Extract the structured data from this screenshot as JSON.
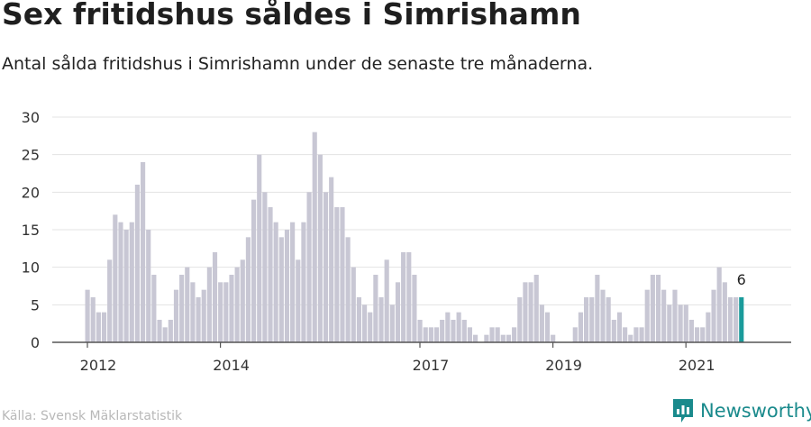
{
  "title": "Sex fritidshus såldes i Simrishamn",
  "subtitle": "Antal sålda fritidshus i Simrishamn under de senaste tre månaderna.",
  "source": "Källa: Svensk Mäklarstatistik",
  "brand": "Newsworthy",
  "colors": {
    "bar": "#c8c7d4",
    "highlight": "#1a9b9b",
    "grid": "#e3e3e3",
    "axis": "#555555",
    "brand": "#1a8a8c"
  },
  "icon": "newsworthy-logo-icon",
  "chart_data": {
    "type": "bar",
    "title": "Sex fritidshus såldes i Simrishamn",
    "xlabel": "",
    "ylabel": "",
    "ylim": [
      0,
      30
    ],
    "yticks": [
      0,
      5,
      10,
      15,
      20,
      25,
      30
    ],
    "grid": true,
    "x_start": "2012-01",
    "x_ticks": [
      {
        "label": "2012",
        "date": "2012-01"
      },
      {
        "label": "2014",
        "date": "2014-01"
      },
      {
        "label": "2017",
        "date": "2017-01"
      },
      {
        "label": "2019",
        "date": "2019-01"
      },
      {
        "label": "2021",
        "date": "2021-01"
      }
    ],
    "values": [
      7,
      6,
      4,
      4,
      11,
      17,
      16,
      15,
      16,
      21,
      24,
      15,
      9,
      3,
      2,
      3,
      7,
      9,
      10,
      8,
      6,
      7,
      10,
      12,
      8,
      8,
      9,
      10,
      11,
      14,
      19,
      25,
      20,
      18,
      16,
      14,
      15,
      16,
      11,
      16,
      20,
      28,
      25,
      20,
      22,
      18,
      18,
      14,
      10,
      6,
      5,
      4,
      9,
      6,
      11,
      5,
      8,
      12,
      12,
      9,
      3,
      2,
      2,
      2,
      3,
      4,
      3,
      4,
      3,
      2,
      1,
      0,
      1,
      2,
      2,
      1,
      1,
      2,
      6,
      8,
      8,
      9,
      5,
      4,
      1,
      0,
      0,
      0,
      2,
      4,
      6,
      6,
      9,
      7,
      6,
      3,
      4,
      2,
      1,
      2,
      2,
      7,
      9,
      9,
      7,
      5,
      7,
      5,
      5,
      3,
      2,
      2,
      4,
      7,
      10,
      8,
      6,
      6,
      6
    ],
    "highlight_last": true,
    "annotation": {
      "text": "6",
      "index": "last"
    }
  }
}
